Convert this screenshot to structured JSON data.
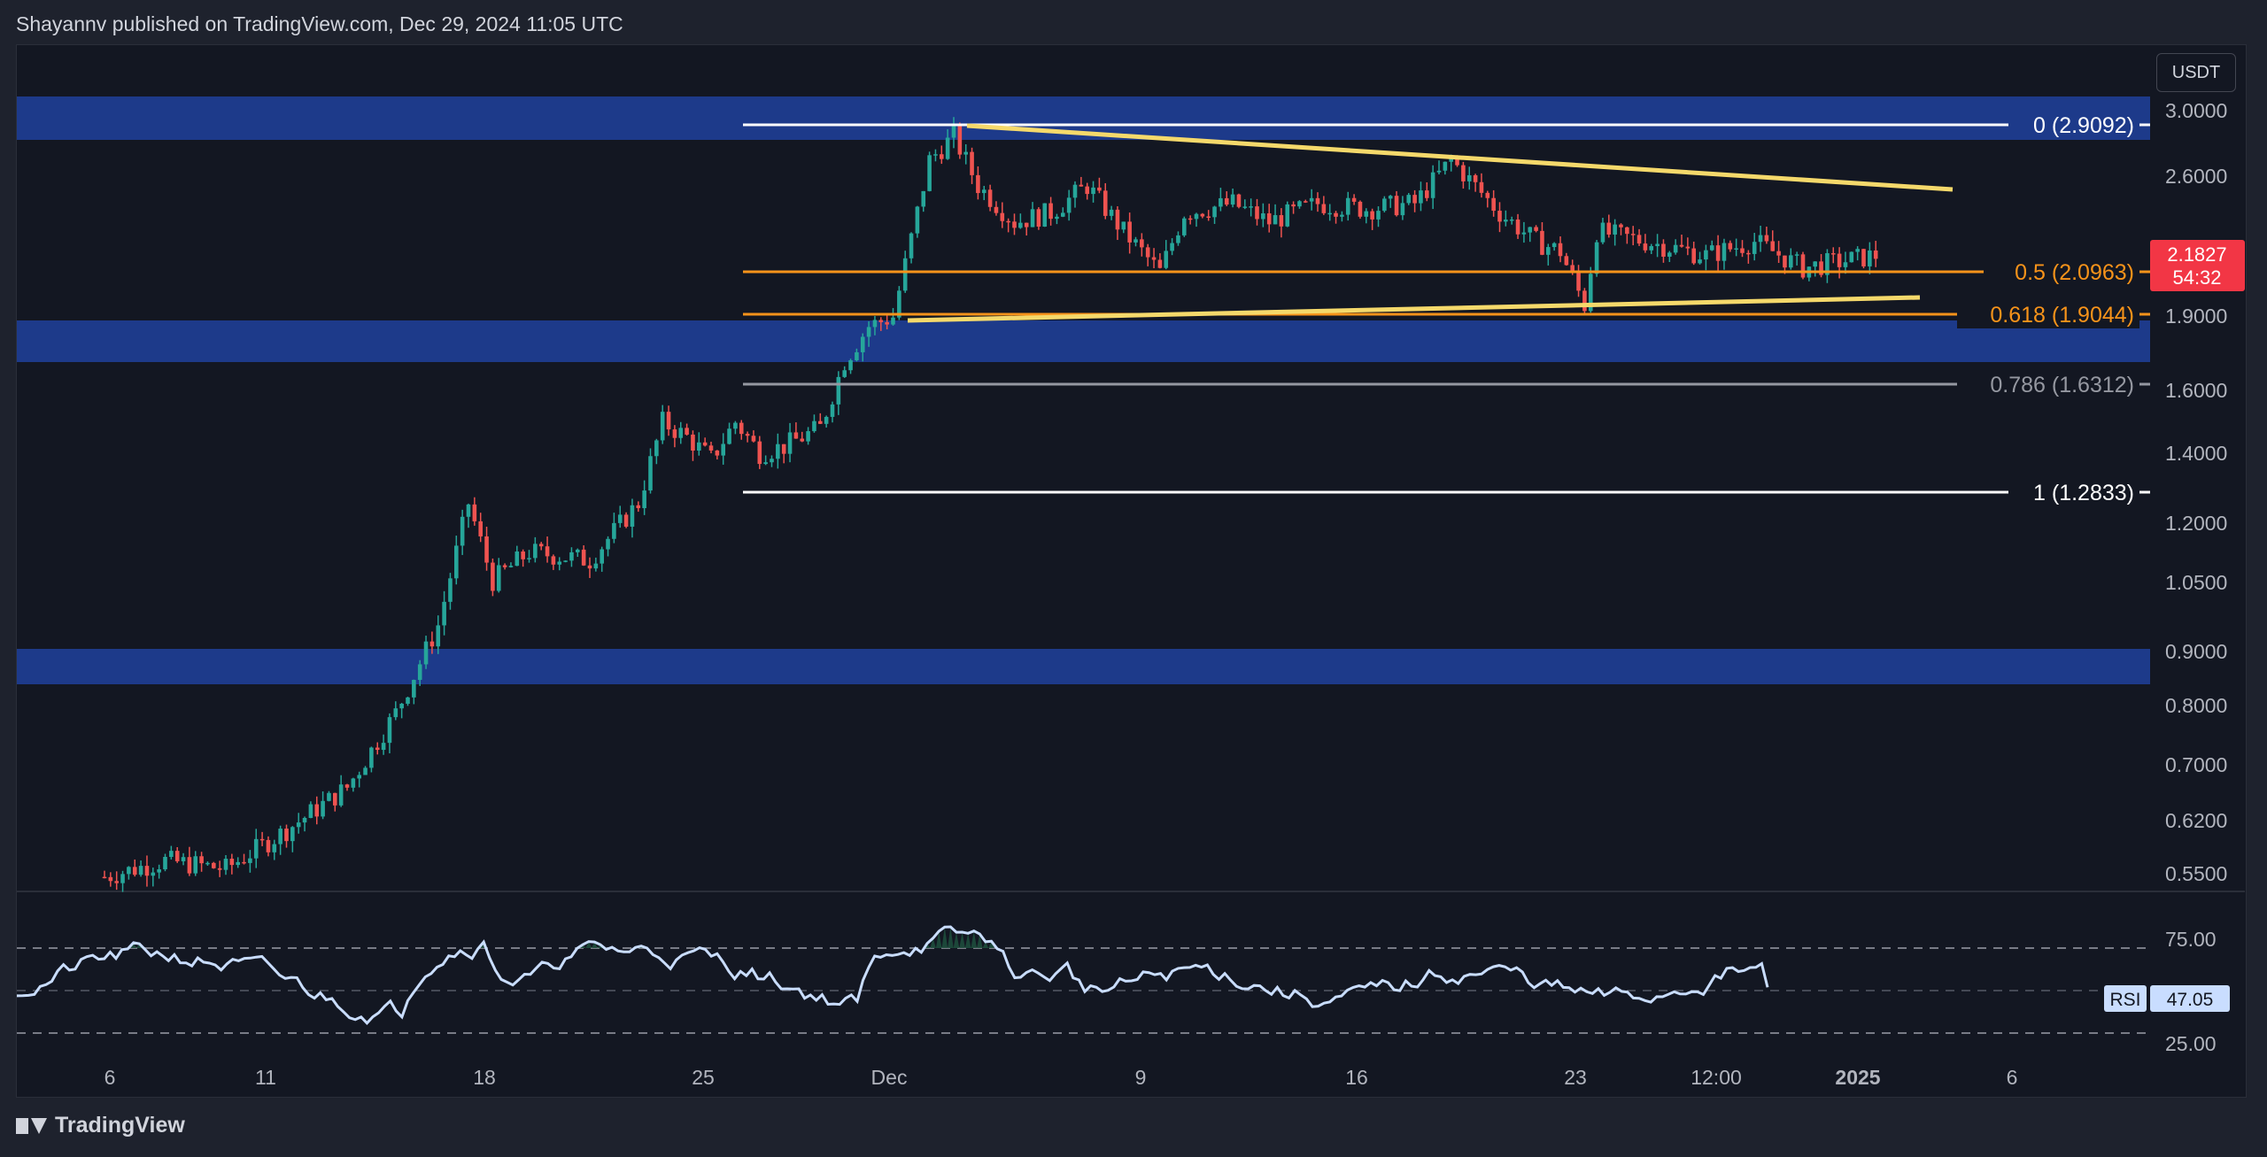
{
  "header": {
    "publisher_line": "Shayannv published on TradingView.com, Dec 29, 2024 11:05 UTC"
  },
  "footer": {
    "brand": "TradingView"
  },
  "price_axis": {
    "currency": "USDT",
    "ticks": [
      "3.0000",
      "2.6000",
      "1.9000",
      "1.6000",
      "1.4000",
      "1.2000",
      "1.0500",
      "0.9000",
      "0.8000",
      "0.7000",
      "0.6200",
      "0.5500"
    ],
    "current_price": "2.1827",
    "countdown": "54:32"
  },
  "time_axis": {
    "labels": [
      "6",
      "11",
      "18",
      "25",
      "Dec",
      "9",
      "16",
      "23",
      "12:00",
      "2025",
      "6"
    ]
  },
  "rsi": {
    "label": "RSI",
    "value": "47.05",
    "levels": [
      "75.00",
      "25.00"
    ]
  },
  "fib_labels": {
    "f0": "0 (2.9092)",
    "f05": "0.5 (2.0963)",
    "f0618": "0.618 (1.9044)",
    "f0786": "0.786 (1.6312)",
    "f1": "1 (1.2833)"
  },
  "colors": {
    "background": "#131722",
    "zone": "#1d3a8a",
    "up": "#26a69a",
    "down": "#ef5350",
    "triangle": "#f5d96b",
    "fib_orange": "#f7931a",
    "fib_gray": "#9598a1",
    "fib_white": "#ffffff",
    "rsi_line": "#c9ddff",
    "price_tag": "#f23645"
  },
  "chart_data": {
    "type": "candlestick",
    "title": "",
    "y_scale": "log",
    "price_range": [
      0.53,
      3.3
    ],
    "candle_close_path": [
      [
        0,
        0.54
      ],
      [
        10,
        0.56
      ],
      [
        20,
        0.55
      ],
      [
        30,
        0.6
      ],
      [
        40,
        0.66
      ],
      [
        48,
        0.78
      ],
      [
        55,
        0.95
      ],
      [
        60,
        1.25
      ],
      [
        64,
        1.05
      ],
      [
        70,
        1.12
      ],
      [
        80,
        1.1
      ],
      [
        88,
        1.25
      ],
      [
        92,
        1.5
      ],
      [
        96,
        1.45
      ],
      [
        100,
        1.38
      ],
      [
        104,
        1.5
      ],
      [
        108,
        1.4
      ],
      [
        112,
        1.42
      ],
      [
        118,
        1.48
      ],
      [
        122,
        1.72
      ],
      [
        126,
        1.86
      ],
      [
        130,
        1.9
      ],
      [
        136,
        2.7
      ],
      [
        140,
        2.85
      ],
      [
        144,
        2.55
      ],
      [
        150,
        2.35
      ],
      [
        156,
        2.4
      ],
      [
        162,
        2.55
      ],
      [
        168,
        2.3
      ],
      [
        174,
        2.1
      ],
      [
        178,
        2.4
      ],
      [
        186,
        2.45
      ],
      [
        192,
        2.35
      ],
      [
        200,
        2.45
      ],
      [
        208,
        2.42
      ],
      [
        216,
        2.45
      ],
      [
        222,
        2.7
      ],
      [
        230,
        2.4
      ],
      [
        236,
        2.25
      ],
      [
        240,
        2.2
      ],
      [
        244,
        1.95
      ],
      [
        246,
        2.3
      ],
      [
        254,
        2.25
      ],
      [
        264,
        2.18
      ],
      [
        272,
        2.25
      ],
      [
        280,
        2.12
      ],
      [
        292,
        2.18
      ]
    ],
    "fib_levels": [
      {
        "ratio": 0,
        "price": 2.9092
      },
      {
        "ratio": 0.5,
        "price": 2.0963
      },
      {
        "ratio": 0.618,
        "price": 1.9044
      },
      {
        "ratio": 0.786,
        "price": 1.6312
      },
      {
        "ratio": 1,
        "price": 1.2833
      }
    ],
    "supply_demand_zones": [
      {
        "low": 2.75,
        "high": 3.0
      },
      {
        "low": 1.75,
        "high": 1.93
      },
      {
        "low": 0.84,
        "high": 0.91
      }
    ],
    "triangle": {
      "upper": [
        [
          2.85,
          "Dec 3"
        ],
        [
          2.58,
          "Jan 3"
        ]
      ],
      "lower": [
        [
          1.9,
          "Dec 3"
        ],
        [
          1.96,
          "Jan 1"
        ]
      ]
    },
    "rsi_levels": [
      75,
      50,
      25
    ],
    "rsi_current": 47.05
  }
}
